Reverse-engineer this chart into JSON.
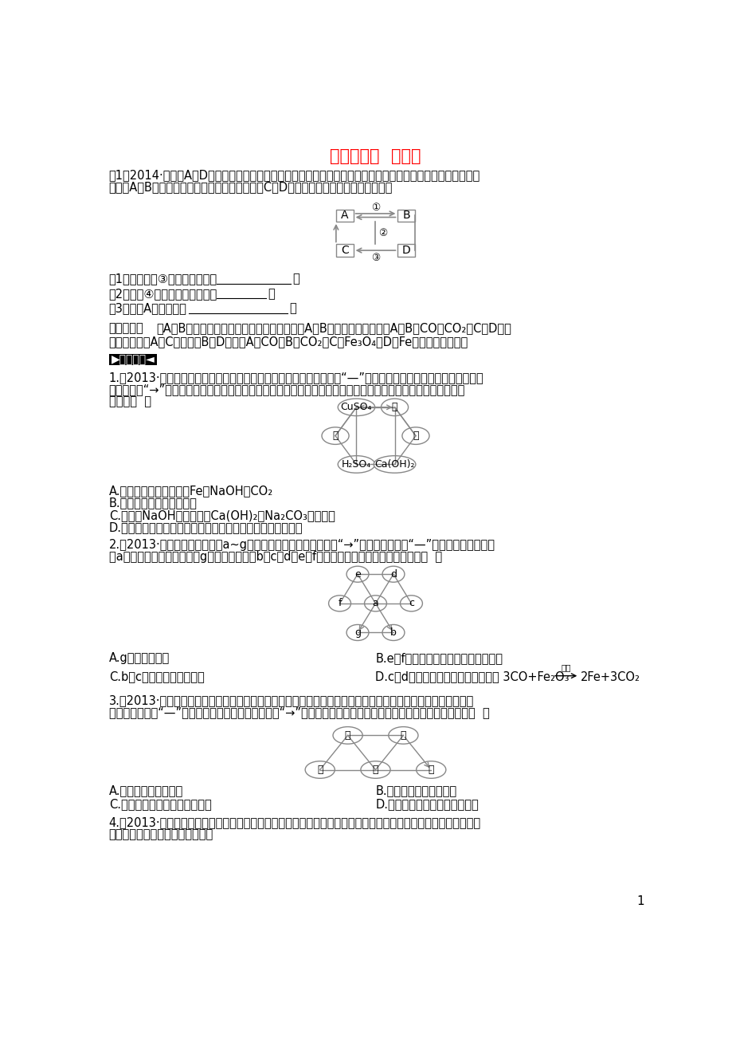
{
  "title": "题型复习七  推断题",
  "title_color": "#FF0000",
  "bg_color": "#FFFFFF",
  "text_color": "#000000",
  "page_number": "1",
  "example1_line1": "例1（2014·随州）A～D是初中化学所学的常见物质，其转化关系如图所示（部分反应物和生成物、反应条件已略",
  "example1_line2": "去），A、B常温下为无色气体且组成元素相同，C、D均为黑色粉末。请回答下列问题：",
  "q1": "（1）写出反应③的化学方程式：",
  "q2": "（2）反应④的基本反应类型是：",
  "q3": "（3）物质A的一种用途",
  "analysis_label": "思路点拨：",
  "analysis_line1": "由A、B常温下为无色气体且组成元素相同，且A与B可以相互转化，可知A、B为CO、CO₂，C、D均为",
  "analysis_line2": "黑色粉末，且A、C可以得到B和D，可知A为CO，B为CO₂，C为Fe₃O₄，D为Fe，据此便可解答。",
  "practice_label": "▶针对训练◄",
  "p1_line1": "1.（2013·连云港）下图中甲、乙、丙是初中化学中常见的物质，图中“—”表示相连的物质之间可以在溶液中发生",
  "p1_line2": "化学反应，“→”表示由某种物质可转化为另一种物质（部分反应物、生成物及反应条件已略去）。下列说法中不正",
  "p1_line3": "确的是（  ）",
  "p1_A": "A.甲、乙、丙可能依次为Fe、NaOH、CO₂",
  "p1_B": "B.丙物质只能是氧化物或盐",
  "p1_C": "C.当乙为NaOH时，它可由Ca(OH)₂与Na₂CO₃反应生成",
  "p1_D": "D.当甲为一种硷时，它与确酸铜溶液的反应可能产生两种沉淠",
  "p2_line1": "2.（2013·呼和浩特）如图所示a~g是初中化学常见的物质。图中“→”表示转化关系，“—”表示相互能反应。已",
  "p2_line2": "知a是人体胃液中含有的酸，g是最轻的气体，b、c、d、e、f都是氧化物。以下说法不正确的是（  ）",
  "p2_A": "A.g是理想的燃料",
  "p2_B": "B.e与f发生的化学反应类型是化合反应",
  "p2_C": "C.b和c物质中所含元素相同",
  "p2_D_part1": "D.c、d发生反应的化学方程式只能是 3CO+Fe₂O₃",
  "p2_D_arrow_label": "高温",
  "p2_D_part2": "2Fe+3CO₂",
  "p3_line1": "3.（2013·宁波）现有铁、氧化铁、稀确酸、氢氧化馒溶液、碳酸馒溶液等五种物质，存在着如图所示的相互应或",
  "p3_line2": "转化关系（图中“—”表示物质间可以发生化学反应，“→”表示物质间存在相应的转化关系）。下列判断合理的是（  ）",
  "p3_A": "A.丙可能是碳酸馒溶液",
  "p3_B": "B.丁可能是氢氧化馒溶液",
  "p3_C": "C.乙必须通过置换反应转化为铁",
  "p3_D": "D.甲和丁的反应一定是中和反应",
  "p4_line1": "4.（2013·黄岗）已知甲、乙、丙、丁是初中化学中的四种常见物质，丁是甲与乙、乙与丙反应的生成物之一（反应",
  "p4_line2": "条件均已略去），转化关系如图："
}
